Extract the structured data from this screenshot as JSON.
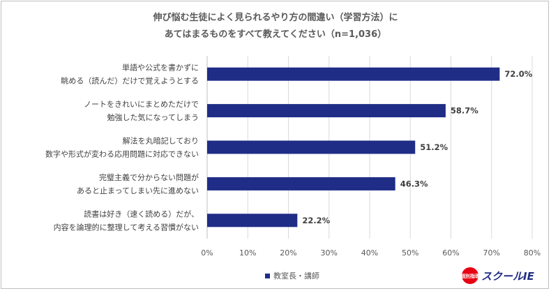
{
  "title_line1": "伸び悩む生徒によく見られるやり方の間違い（学習方法）に",
  "title_line2": "あてはまるものをすべて教えてください（n=1,036）",
  "legend_label": "教室長・講師",
  "logo": {
    "text": "スクールIE",
    "badge": "個別指導"
  },
  "colors": {
    "bar": "#1f2d86",
    "grid": "#d9d9d9"
  },
  "chart_data": {
    "type": "bar",
    "orientation": "horizontal",
    "categories": [
      [
        "単語や公式を書かずに",
        "眺める（読んだ）だけで覚えようとする"
      ],
      [
        "ノートをきれいにまとめただけで",
        "勉強した気になってしまう"
      ],
      [
        "解法を丸暗記しており",
        "数字や形式が変わる応用問題に対応できない"
      ],
      [
        "完璧主義で分からない問題が",
        "あると止まってしまい先に進めない"
      ],
      [
        "読書は好き（速く読める）だが、",
        "内容を論理的に整理して考える習慣がない"
      ]
    ],
    "series": [
      {
        "name": "教室長・講師",
        "values": [
          72.0,
          58.7,
          51.2,
          46.3,
          22.2
        ]
      }
    ],
    "value_labels": [
      "72.0%",
      "58.7%",
      "51.2%",
      "46.3%",
      "22.2%"
    ],
    "xlim": [
      0,
      80
    ],
    "xticks": [
      0,
      10,
      20,
      30,
      40,
      50,
      60,
      70,
      80
    ],
    "xtick_labels": [
      "0%",
      "10%",
      "20%",
      "30%",
      "40%",
      "50%",
      "60%",
      "70%",
      "80%"
    ],
    "grid": true,
    "legend_position": "bottom"
  }
}
